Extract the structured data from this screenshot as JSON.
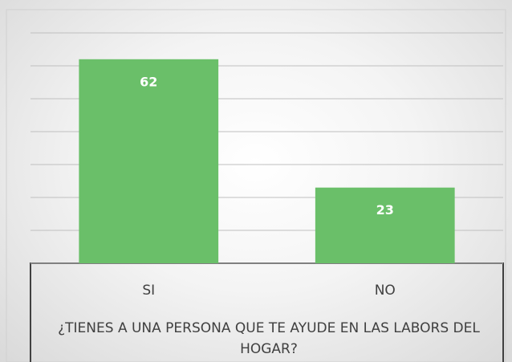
{
  "chart_data": {
    "type": "bar",
    "x_label": "¿TIENES A UNA PERSONA QUE TE AYUDE EN LAS LABORS DEL HOGAR?",
    "categories": [
      "SI",
      "NO"
    ],
    "values": [
      62,
      23
    ],
    "color": "#6abf69",
    "ylim": [
      0,
      70
    ],
    "yticks": [
      0,
      10,
      20,
      30,
      40,
      50,
      60,
      70
    ],
    "grid": true
  }
}
